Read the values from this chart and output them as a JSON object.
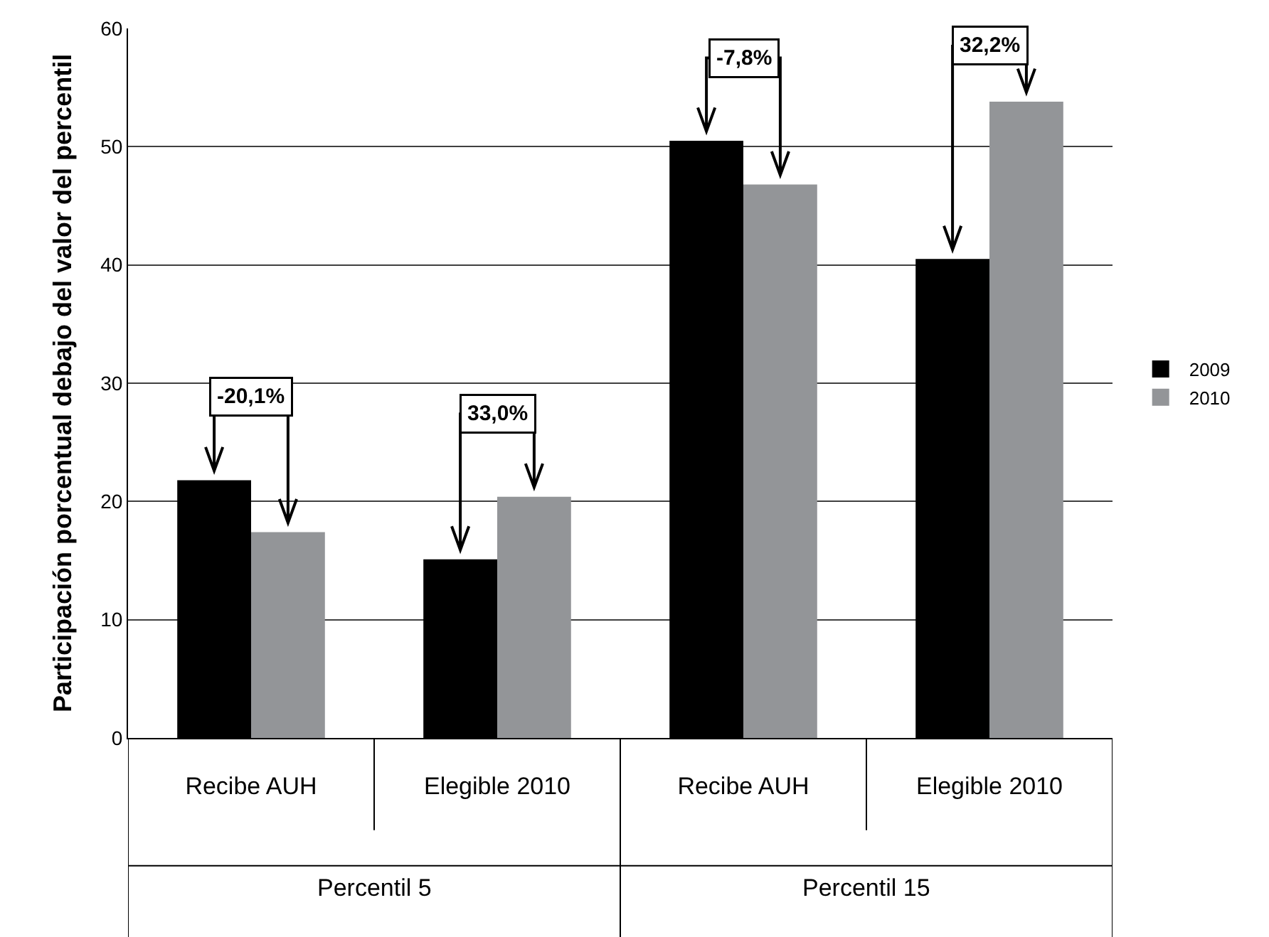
{
  "chart_data": {
    "type": "bar",
    "ylabel": "Participación porcentual debajo del valor del percentil",
    "categories": [
      "Recibe AUH",
      "Elegible 2010",
      "Recibe AUH",
      "Elegible 2010"
    ],
    "series": [
      {
        "name": "2009",
        "color": "#000000",
        "values": [
          21.8,
          15.1,
          50.5,
          40.5
        ]
      },
      {
        "name": "2010",
        "color": "#939598",
        "values": [
          17.4,
          20.4,
          46.8,
          53.8
        ]
      }
    ],
    "ylim": [
      0,
      60
    ],
    "yticks": [
      0,
      10,
      20,
      30,
      40,
      50,
      60
    ],
    "grid": "y",
    "legend": "right",
    "annotations": [
      "-20,1%",
      "33,0%",
      "-7,8%",
      "32,2%",
      "Percentil 5",
      "Percentil 15"
    ]
  }
}
